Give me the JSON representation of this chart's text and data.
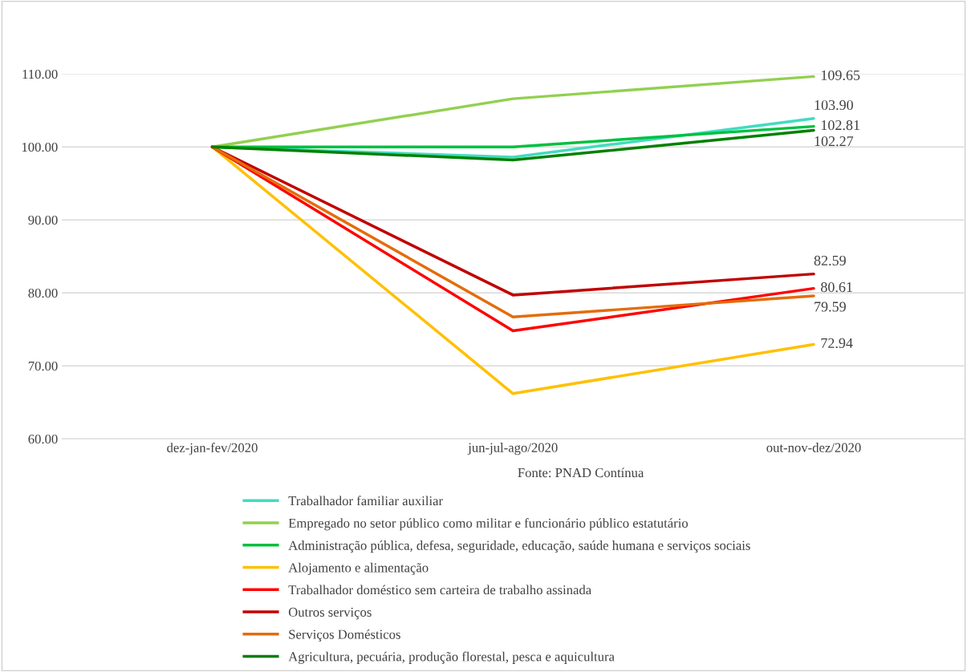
{
  "chart_data": {
    "type": "line",
    "categories": [
      "dez-jan-fev/2020",
      "jun-jul-ago/2020",
      "out-nov-dez/2020"
    ],
    "series": [
      {
        "name": "Trabalhador familiar auxiliar",
        "color": "#40dcc0",
        "values": [
          100.0,
          98.6,
          103.9
        ],
        "value_labels": [
          null,
          null,
          "103.90"
        ]
      },
      {
        "name": "Empregado no setor público como militar e funcionário público estatutário",
        "color": "#92d050",
        "values": [
          100.0,
          106.6,
          109.65
        ],
        "value_labels": [
          null,
          null,
          "109.65"
        ]
      },
      {
        "name": "Administração pública, defesa, seguridade, educação, saúde humana e serviços sociais",
        "color": "#00c040",
        "values": [
          100.0,
          100.0,
          102.81
        ],
        "value_labels": [
          null,
          null,
          "102.81"
        ]
      },
      {
        "name": "Alojamento e alimentação",
        "color": "#ffc000",
        "values": [
          100.0,
          66.2,
          72.94
        ],
        "value_labels": [
          null,
          null,
          "72.94"
        ]
      },
      {
        "name": "Trabalhador doméstico sem carteira de trabalho assinada",
        "color": "#ff0000",
        "values": [
          100.0,
          74.8,
          80.61
        ],
        "value_labels": [
          null,
          null,
          "80.61"
        ]
      },
      {
        "name": "Outros serviços",
        "color": "#c00000",
        "values": [
          100.0,
          79.7,
          82.59
        ],
        "value_labels": [
          null,
          null,
          "82.59"
        ]
      },
      {
        "name": "Serviços Domésticos",
        "color": "#e46c0a",
        "values": [
          100.0,
          76.7,
          79.59
        ],
        "value_labels": [
          null,
          null,
          "79.59"
        ]
      },
      {
        "name": "Agricultura, pecuária, produção florestal, pesca e aquicultura",
        "color": "#008000",
        "values": [
          100.0,
          98.2,
          102.27
        ],
        "value_labels": [
          null,
          null,
          "102.27"
        ]
      }
    ],
    "ylim": [
      60,
      110
    ],
    "yticks": [
      {
        "value": 60,
        "label": "60.00"
      },
      {
        "value": 70,
        "label": "70.00"
      },
      {
        "value": 80,
        "label": "80.00"
      },
      {
        "value": 90,
        "label": "90.00"
      },
      {
        "value": 100,
        "label": "100.00"
      },
      {
        "value": 110,
        "label": "110.00"
      }
    ],
    "grid": "y",
    "legend": "bottom",
    "marker": "none",
    "line_style": "solid",
    "annotations": [
      "Fonte: PNAD Contínua"
    ]
  }
}
